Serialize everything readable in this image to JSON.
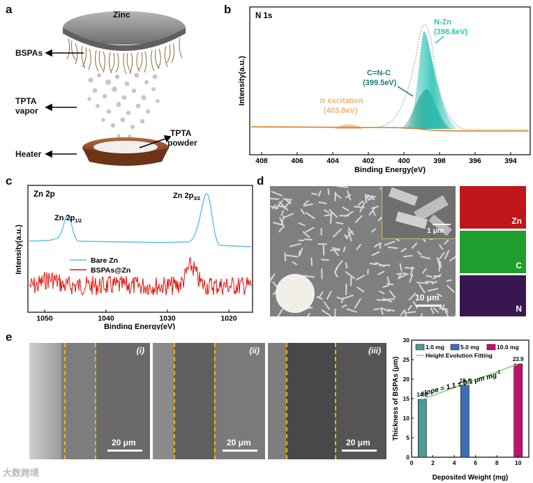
{
  "panels": {
    "a": "a",
    "b": "b",
    "c": "c",
    "d": "d",
    "e": "e"
  },
  "panel_a": {
    "zinc": "Zinc",
    "bspas": "BSPAs",
    "tpta_vapor_1": "TPTA",
    "tpta_vapor_2": "vapor",
    "tpta_powder_1": "TPTA",
    "tpta_powder_2": "powder",
    "heater": "Heater",
    "colors": {
      "zinc": "#8a8a8a",
      "crucible": "#8b4a2c"
    }
  },
  "panel_b": {
    "title": "N 1s",
    "ylabel": "Intensity(a.u.)",
    "xlabel": "Binding Energy(eV)",
    "xticks": [
      "408",
      "406",
      "404",
      "402",
      "400",
      "398",
      "396",
      "394"
    ],
    "peak_nzn_1": "N-Zn",
    "peak_nzn_2": "(398.8eV)",
    "peak_cnc_1": "C=N-C",
    "peak_cnc_2": "(399.5eV)",
    "peak_pi_1": "π excitation",
    "peak_pi_2": "(403.8eV)",
    "colors": {
      "nzn": "#2ec4b6",
      "cnc": "#1b7a6e",
      "pi": "#f0b27a",
      "bg": "#e07b1a"
    }
  },
  "panel_c": {
    "title": "Zn 2p",
    "peak1": "Zn 2p",
    "peak1_sub": "1/2",
    "peak2": "Zn 2p",
    "peak2_sub": "3/2",
    "ylabel": "Intensity(a.u.)",
    "xlabel": "Binding Energy(eV)",
    "xticks": [
      "1050",
      "1040",
      "1030",
      "1020"
    ],
    "legend": [
      "Bare Zn",
      "BSPAs@Zn"
    ],
    "colors": {
      "bare": "#5bc0eb",
      "bspa": "#e3120b"
    }
  },
  "panel_d": {
    "inset_scale": "1 μm",
    "main_scale": "10 μm",
    "eds": [
      "Zn",
      "C",
      "N"
    ],
    "colors": {
      "zn": "#c0151a",
      "c": "#1f9e2e",
      "n": "#4a1c5c"
    }
  },
  "panel_e": {
    "romans": [
      "(i)",
      "(ii)",
      "(iii)"
    ],
    "scale": "20 μm"
  },
  "chart_data": {
    "type": "bar",
    "title": "",
    "xlabel": "Deposited Weight (mg)",
    "ylabel": "Thickness of BSPAs (μm)",
    "x": [
      1,
      5,
      10
    ],
    "values": [
      14.8,
      18.4,
      23.9
    ],
    "value_labels": [
      "14.8",
      "18.4",
      "23.9"
    ],
    "xlim": [
      0,
      11
    ],
    "ylim": [
      0,
      30
    ],
    "xticks": [
      "0",
      "2",
      "4",
      "6",
      "8",
      "10"
    ],
    "yticks": [
      "0",
      "5",
      "10",
      "15",
      "20",
      "25",
      "30"
    ],
    "legend": [
      "1.0 mg",
      "5.0 mg",
      "10.0 mg",
      "Height Evolution Fitting"
    ],
    "annotation": "slope = 1.1 ± 0.1 μm mg",
    "annotation_sup": "-1",
    "fit": {
      "x0": 1,
      "y0": 14.8,
      "x1": 10,
      "y1": 23.9
    },
    "colors": [
      "#4b9c93",
      "#3d6fb6",
      "#c2126f"
    ],
    "fit_color": "#7dd87d"
  },
  "watermark": "大数跨境"
}
